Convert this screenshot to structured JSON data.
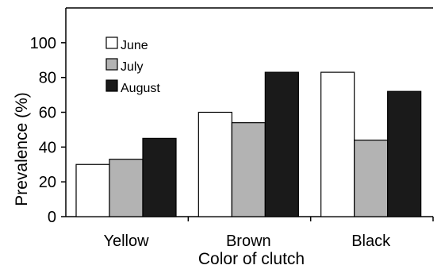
{
  "chart_data": {
    "type": "bar",
    "categories": [
      "Yellow",
      "Brown",
      "Black"
    ],
    "series": [
      {
        "name": "June",
        "values": [
          30,
          60,
          83
        ],
        "color": "#ffffff"
      },
      {
        "name": "July",
        "values": [
          33,
          54,
          44
        ],
        "color": "#b3b3b3"
      },
      {
        "name": "August",
        "values": [
          45,
          83,
          72
        ],
        "color": "#1a1a1a"
      }
    ],
    "xlabel": "Color of clutch",
    "ylabel": "Prevalence (%)",
    "ylim": [
      0,
      120
    ],
    "yticks": [
      "0",
      "20",
      "40",
      "60",
      "80",
      "100"
    ],
    "legend_position": "top-left",
    "grid": false
  }
}
